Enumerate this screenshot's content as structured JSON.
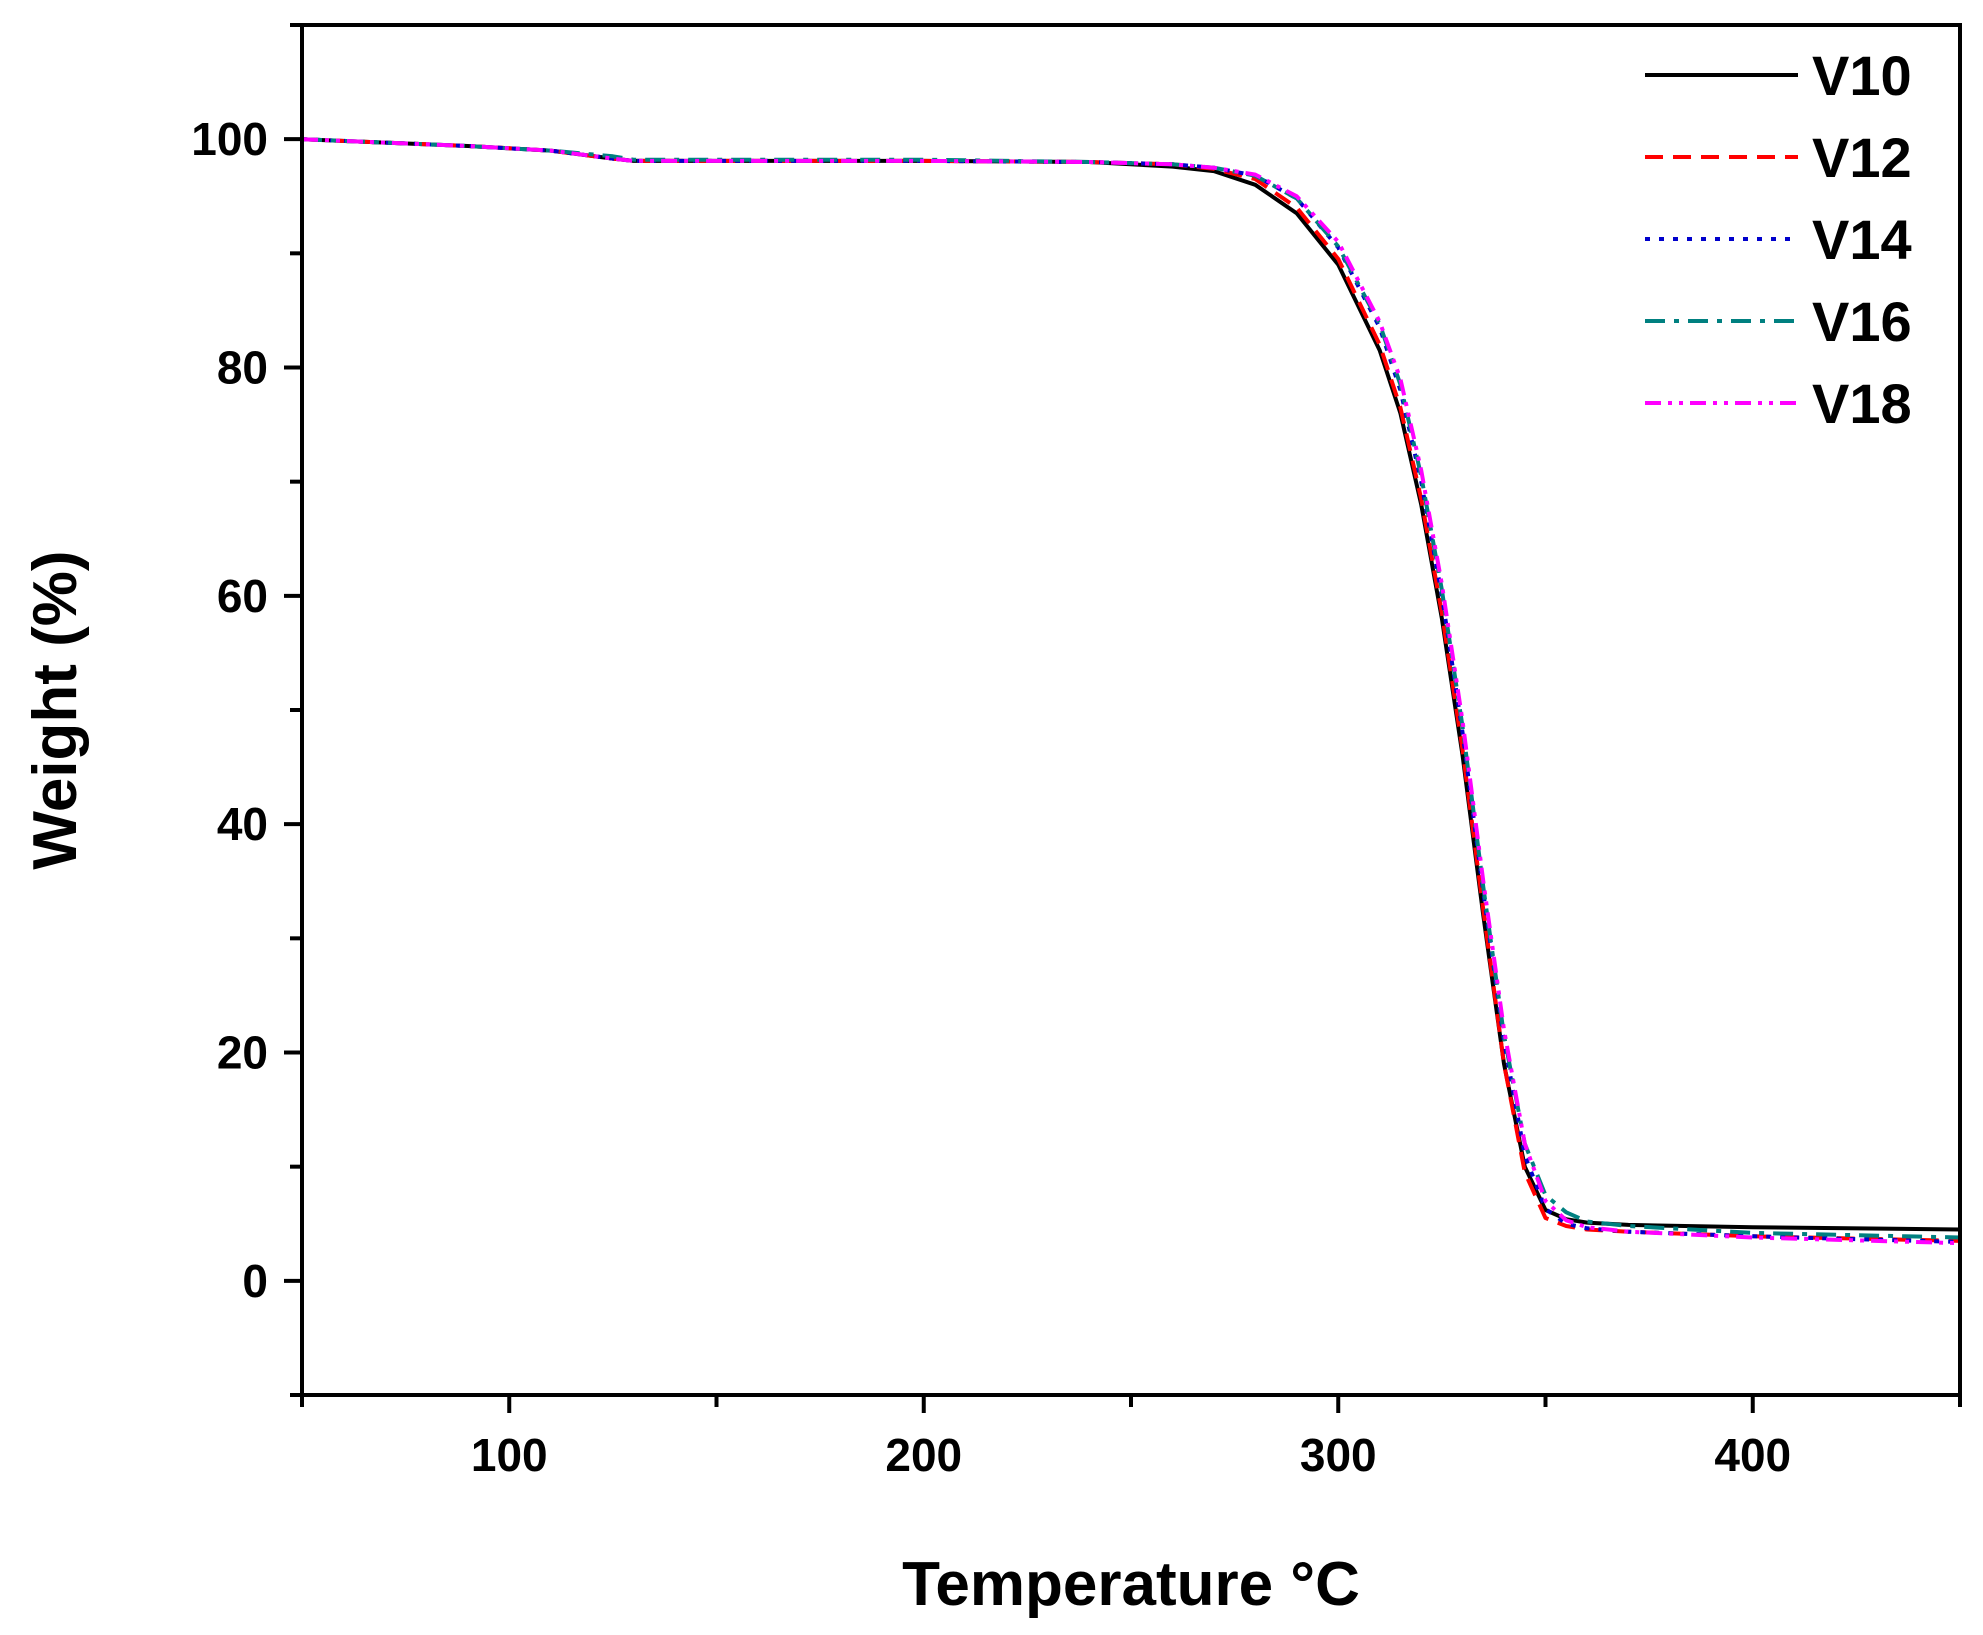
{
  "chart_data": {
    "type": "line",
    "xlabel": "Temperature °C",
    "ylabel": "Weight (%)",
    "xlim": [
      50,
      450
    ],
    "ylim": [
      -10,
      110
    ],
    "x_ticks": [
      100,
      200,
      300,
      400
    ],
    "y_ticks": [
      0,
      20,
      40,
      60,
      80,
      100
    ],
    "legend_position": "top-right",
    "grid": false,
    "series": [
      {
        "name": "V10",
        "color": "#000000",
        "dash": "solid",
        "points": [
          [
            50,
            100
          ],
          [
            70,
            99.7
          ],
          [
            90,
            99.4
          ],
          [
            110,
            99
          ],
          [
            125,
            98.3
          ],
          [
            130,
            98.1
          ],
          [
            150,
            98.1
          ],
          [
            200,
            98.1
          ],
          [
            240,
            98
          ],
          [
            260,
            97.6
          ],
          [
            270,
            97.2
          ],
          [
            280,
            96
          ],
          [
            290,
            93.5
          ],
          [
            300,
            89
          ],
          [
            310,
            81.5
          ],
          [
            315,
            76
          ],
          [
            320,
            68
          ],
          [
            325,
            58
          ],
          [
            330,
            46
          ],
          [
            335,
            32
          ],
          [
            340,
            19
          ],
          [
            345,
            10
          ],
          [
            350,
            6.2
          ],
          [
            355,
            5.4
          ],
          [
            360,
            5.1
          ],
          [
            370,
            4.9
          ],
          [
            400,
            4.7
          ],
          [
            450,
            4.5
          ]
        ]
      },
      {
        "name": "V12",
        "color": "#ff0000",
        "dash": "dashed",
        "points": [
          [
            50,
            100
          ],
          [
            70,
            99.7
          ],
          [
            90,
            99.4
          ],
          [
            110,
            99
          ],
          [
            125,
            98.3
          ],
          [
            130,
            98.1
          ],
          [
            150,
            98.1
          ],
          [
            200,
            98.1
          ],
          [
            240,
            98
          ],
          [
            260,
            97.8
          ],
          [
            270,
            97.4
          ],
          [
            280,
            96.5
          ],
          [
            290,
            94
          ],
          [
            300,
            89.5
          ],
          [
            310,
            82
          ],
          [
            315,
            76.5
          ],
          [
            320,
            68.5
          ],
          [
            325,
            58.5
          ],
          [
            330,
            46.5
          ],
          [
            335,
            32.5
          ],
          [
            340,
            19
          ],
          [
            345,
            9.5
          ],
          [
            350,
            5.5
          ],
          [
            355,
            4.8
          ],
          [
            360,
            4.5
          ],
          [
            370,
            4.3
          ],
          [
            400,
            3.9
          ],
          [
            450,
            3.5
          ]
        ]
      },
      {
        "name": "V14",
        "color": "#0000cc",
        "dash": "dotted",
        "points": [
          [
            50,
            100
          ],
          [
            70,
            99.7
          ],
          [
            90,
            99.4
          ],
          [
            110,
            99
          ],
          [
            125,
            98.3
          ],
          [
            130,
            98.1
          ],
          [
            150,
            98.1
          ],
          [
            200,
            98.1
          ],
          [
            240,
            98
          ],
          [
            260,
            97.8
          ],
          [
            270,
            97.5
          ],
          [
            280,
            96.8
          ],
          [
            290,
            94.8
          ],
          [
            300,
            90.5
          ],
          [
            310,
            83.5
          ],
          [
            315,
            78
          ],
          [
            320,
            70
          ],
          [
            325,
            60
          ],
          [
            330,
            48
          ],
          [
            335,
            34
          ],
          [
            340,
            21
          ],
          [
            345,
            11
          ],
          [
            350,
            6.3
          ],
          [
            355,
            5
          ],
          [
            360,
            4.6
          ],
          [
            370,
            4.3
          ],
          [
            400,
            3.9
          ],
          [
            450,
            3.4
          ]
        ]
      },
      {
        "name": "V16",
        "color": "#008080",
        "dash": "dashdot",
        "points": [
          [
            50,
            100
          ],
          [
            70,
            99.7
          ],
          [
            90,
            99.4
          ],
          [
            110,
            99
          ],
          [
            125,
            98.5
          ],
          [
            130,
            98.2
          ],
          [
            150,
            98.2
          ],
          [
            200,
            98.2
          ],
          [
            240,
            98
          ],
          [
            260,
            97.8
          ],
          [
            270,
            97.5
          ],
          [
            280,
            96.8
          ],
          [
            290,
            94.8
          ],
          [
            300,
            90.6
          ],
          [
            310,
            83.8
          ],
          [
            315,
            78.5
          ],
          [
            320,
            70.5
          ],
          [
            325,
            60.5
          ],
          [
            330,
            48.5
          ],
          [
            335,
            34.5
          ],
          [
            340,
            21.5
          ],
          [
            345,
            12
          ],
          [
            350,
            7.5
          ],
          [
            355,
            6
          ],
          [
            360,
            5.2
          ],
          [
            370,
            4.8
          ],
          [
            400,
            4.2
          ],
          [
            450,
            3.8
          ]
        ]
      },
      {
        "name": "V18",
        "color": "#ff00ff",
        "dash": "dashdotdot",
        "points": [
          [
            50,
            100
          ],
          [
            70,
            99.7
          ],
          [
            90,
            99.4
          ],
          [
            110,
            99
          ],
          [
            125,
            98.3
          ],
          [
            130,
            98.1
          ],
          [
            150,
            98.1
          ],
          [
            200,
            98.1
          ],
          [
            240,
            98
          ],
          [
            260,
            97.8
          ],
          [
            270,
            97.5
          ],
          [
            280,
            96.9
          ],
          [
            290,
            95
          ],
          [
            300,
            91
          ],
          [
            310,
            84
          ],
          [
            315,
            79
          ],
          [
            320,
            71
          ],
          [
            325,
            61
          ],
          [
            330,
            49
          ],
          [
            335,
            35
          ],
          [
            340,
            22
          ],
          [
            345,
            12
          ],
          [
            350,
            7
          ],
          [
            355,
            5.3
          ],
          [
            360,
            4.7
          ],
          [
            370,
            4.3
          ],
          [
            400,
            3.8
          ],
          [
            450,
            3.3
          ]
        ]
      }
    ]
  }
}
